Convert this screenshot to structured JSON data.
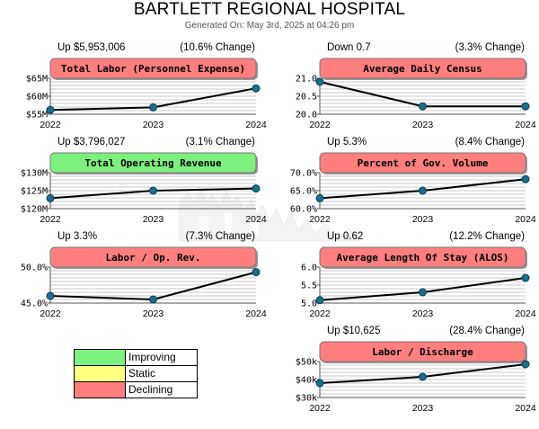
{
  "report": {
    "title": "BARTLETT REGIONAL HOSPITAL",
    "generated": "Generated On: May 3rd, 2025 at 04:26 pm"
  },
  "colors": {
    "improving": "#7ef07e",
    "static": "#ffff80",
    "declining": "#ff7e7e",
    "line": "#000000",
    "marker": "#1a6f8f",
    "grid": "#c8c8c8"
  },
  "legend": [
    {
      "label": "Improving",
      "status": "improving"
    },
    {
      "label": "Static",
      "status": "static"
    },
    {
      "label": "Declining",
      "status": "declining"
    }
  ],
  "chart_data": [
    {
      "type": "line",
      "title": "Total Labor (Personnel Expense)",
      "status": "declining",
      "delta": "Up $5,953,006",
      "pct_change": "(10.6% Change)",
      "x": [
        "2022",
        "2023",
        "2024"
      ],
      "values": [
        56.2,
        56.9,
        62.2
      ],
      "ylim": [
        55,
        65
      ],
      "yticks": [
        55,
        60,
        65
      ],
      "yticklabels": [
        "$55M",
        "$60M",
        "$65M"
      ]
    },
    {
      "type": "line",
      "title": "Average Daily Census",
      "status": "declining",
      "delta": "Down 0.7",
      "pct_change": "(3.3% Change)",
      "x": [
        "2022",
        "2023",
        "2024"
      ],
      "values": [
        20.9,
        20.22,
        20.22
      ],
      "ylim": [
        20.0,
        21.0
      ],
      "yticks": [
        20.0,
        20.5,
        21.0
      ],
      "yticklabels": [
        "20.0",
        "20.5",
        "21.0"
      ]
    },
    {
      "type": "line",
      "title": "Total Operating Revenue",
      "status": "improving",
      "delta": "Up $3,796,027",
      "pct_change": "(3.1% Change)",
      "x": [
        "2022",
        "2023",
        "2024"
      ],
      "values": [
        122.9,
        125.0,
        125.6
      ],
      "ylim": [
        120,
        130
      ],
      "yticks": [
        120,
        125,
        130
      ],
      "yticklabels": [
        "$120M",
        "$125M",
        "$130M"
      ]
    },
    {
      "type": "line",
      "title": "Percent of Gov. Volume",
      "status": "declining",
      "delta": "Up 5.3%",
      "pct_change": "(8.4% Change)",
      "x": [
        "2022",
        "2023",
        "2024"
      ],
      "values": [
        62.9,
        65.0,
        68.2
      ],
      "ylim": [
        60,
        70
      ],
      "yticks": [
        60,
        65,
        70
      ],
      "yticklabels": [
        "60.0%",
        "65.0%",
        "70.0%"
      ]
    },
    {
      "type": "line",
      "title": "Labor / Op. Rev.",
      "status": "declining",
      "delta": "Up 3.3%",
      "pct_change": "(7.3% Change)",
      "x": [
        "2022",
        "2023",
        "2024"
      ],
      "values": [
        46.0,
        45.5,
        49.3
      ],
      "ylim": [
        45,
        50
      ],
      "yticks": [
        45,
        50
      ],
      "yticklabels": [
        "45.0%",
        "50.0%"
      ]
    },
    {
      "type": "line",
      "title": "Average Length Of Stay (ALOS)",
      "status": "declining",
      "delta": "Up 0.62",
      "pct_change": "(12.2% Change)",
      "x": [
        "2022",
        "2023",
        "2024"
      ],
      "values": [
        5.08,
        5.3,
        5.7
      ],
      "ylim": [
        5.0,
        6.0
      ],
      "yticks": [
        5.0,
        5.5,
        6.0
      ],
      "yticklabels": [
        "5.0",
        "5.5",
        "6.0"
      ]
    },
    {
      "type": "line",
      "title": "Labor / Discharge",
      "status": "declining",
      "delta": "Up $10,625",
      "pct_change": "(28.4% Change)",
      "x": [
        "2022",
        "2023",
        "2024"
      ],
      "values": [
        38000,
        41500,
        48500
      ],
      "ylim": [
        30000,
        50000
      ],
      "yticks": [
        30000,
        40000,
        50000
      ],
      "yticklabels": [
        "$30k",
        "$40k",
        "$50k"
      ]
    }
  ]
}
